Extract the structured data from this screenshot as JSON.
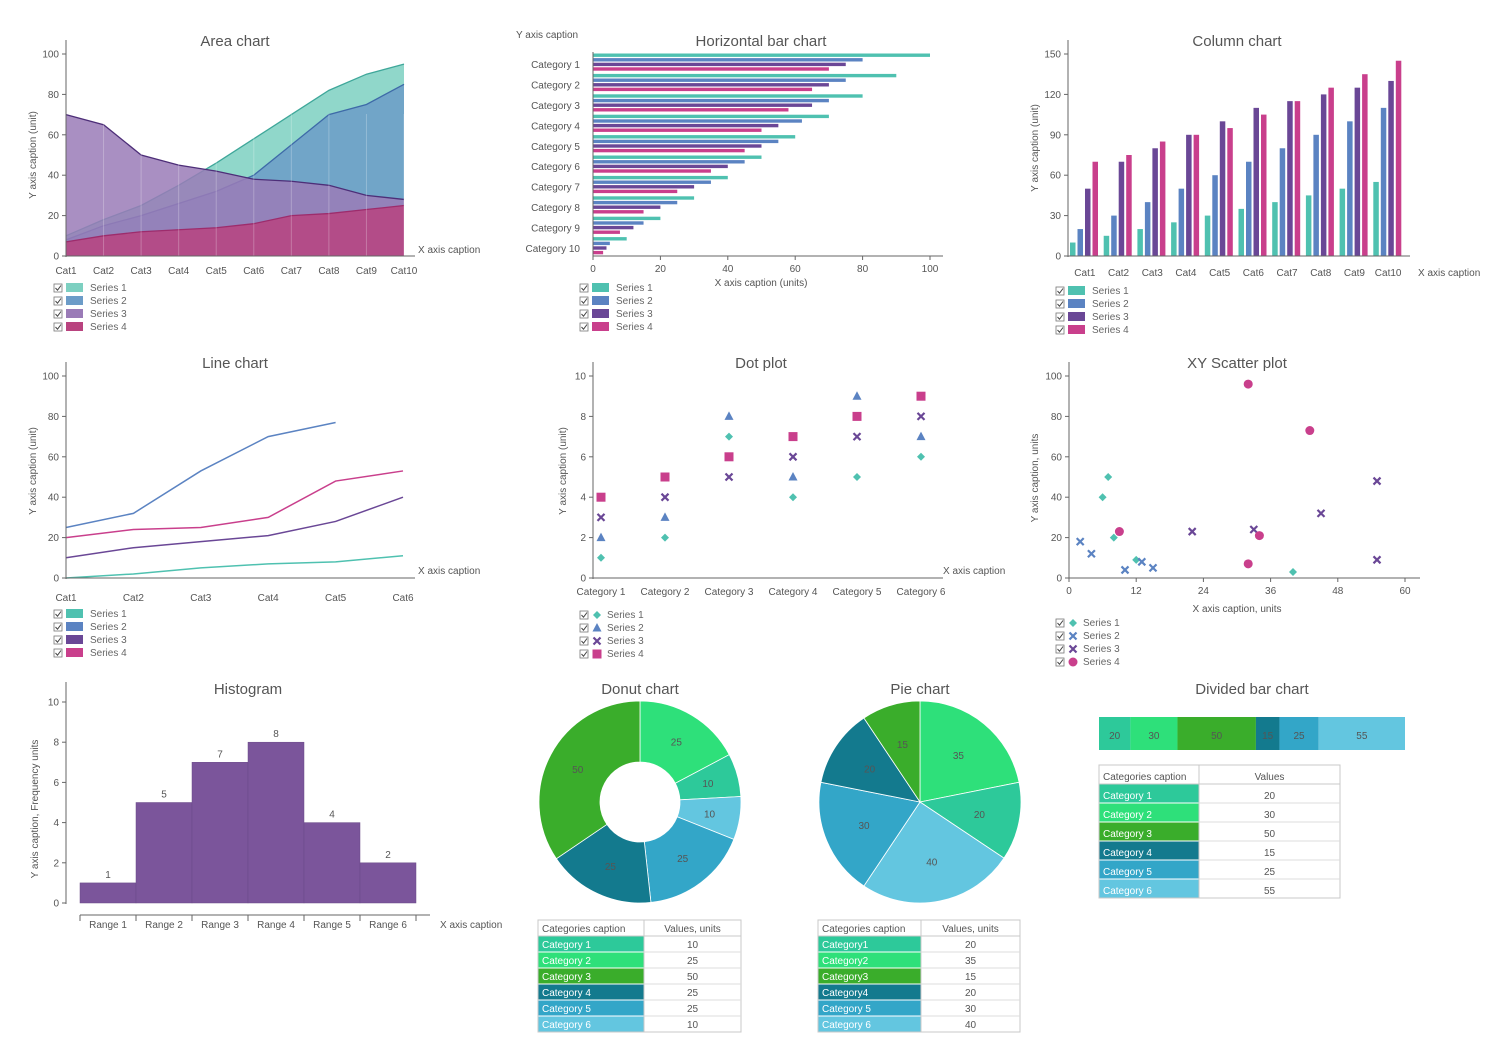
{
  "colors": {
    "s1": "#4fc1b0",
    "s2": "#5b83c2",
    "s3": "#6a4796",
    "s4": "#c93f8c",
    "area1": "#7dd0c1",
    "area2": "#6c9cc8",
    "area3": "#9a7bb7",
    "area4": "#b9437f",
    "hist": "#7b559b",
    "p1": "#2dc99a",
    "p2": "#2ee07a",
    "p3": "#3aad2b",
    "p4": "#137a8e",
    "p5": "#33a6c8",
    "p6": "#63c6e0"
  },
  "chart_data": [
    {
      "id": "area",
      "type": "area",
      "title": "Area chart",
      "xlabel": "X axis caption",
      "ylabel": "Y axis caption (unit)",
      "categories": [
        "Cat1",
        "Cat2",
        "Cat3",
        "Cat4",
        "Cat5",
        "Cat6",
        "Cat7",
        "Cat8",
        "Cat9",
        "Cat10"
      ],
      "ylim": [
        0,
        100
      ],
      "yticks": [
        "0",
        "20",
        "40",
        "60",
        "80",
        "100"
      ],
      "series": [
        {
          "name": "Series 1",
          "values": [
            10,
            18,
            25,
            35,
            46,
            58,
            70,
            82,
            90,
            95
          ]
        },
        {
          "name": "Series 2",
          "values": [
            8,
            15,
            20,
            26,
            32,
            40,
            55,
            70,
            75,
            85
          ]
        },
        {
          "name": "Series 3",
          "values": [
            70,
            65,
            50,
            45,
            42,
            38,
            37,
            35,
            30,
            28
          ]
        },
        {
          "name": "Series 4",
          "values": [
            7,
            10,
            12,
            13,
            14,
            16,
            20,
            21,
            23,
            25
          ]
        }
      ]
    },
    {
      "id": "hbar",
      "type": "bar",
      "orientation": "horizontal",
      "title": "Horizontal bar chart",
      "xlabel": "X axis caption (units)",
      "ylabel": "Y axis caption",
      "categories": [
        "Category 1",
        "Category 2",
        "Category 3",
        "Category 4",
        "Category 5",
        "Category 6",
        "Category 7",
        "Category 8",
        "Category 9",
        "Category 10"
      ],
      "xlim": [
        0,
        100
      ],
      "xticks": [
        "0",
        "20",
        "40",
        "60",
        "80",
        "100"
      ],
      "series": [
        {
          "name": "Series 1",
          "values": [
            100,
            90,
            80,
            70,
            60,
            50,
            40,
            30,
            20,
            10
          ]
        },
        {
          "name": "Series 2",
          "values": [
            80,
            75,
            70,
            62,
            55,
            45,
            35,
            25,
            15,
            5
          ]
        },
        {
          "name": "Series 3",
          "values": [
            75,
            70,
            65,
            55,
            50,
            40,
            30,
            20,
            12,
            4
          ]
        },
        {
          "name": "Series 4",
          "values": [
            70,
            65,
            58,
            50,
            45,
            35,
            25,
            15,
            8,
            3
          ]
        }
      ]
    },
    {
      "id": "column",
      "type": "bar",
      "title": "Column chart",
      "xlabel": "X axis caption",
      "ylabel": "Y axis caption (unit)",
      "categories": [
        "Cat1",
        "Cat2",
        "Cat3",
        "Cat4",
        "Cat5",
        "Cat6",
        "Cat7",
        "Cat8",
        "Cat9",
        "Cat10"
      ],
      "ylim": [
        0,
        150
      ],
      "yticks": [
        "0",
        "30",
        "60",
        "90",
        "120",
        "150"
      ],
      "series": [
        {
          "name": "Series 1",
          "values": [
            10,
            15,
            20,
            25,
            30,
            35,
            40,
            45,
            50,
            55
          ]
        },
        {
          "name": "Series 2",
          "values": [
            20,
            30,
            40,
            50,
            60,
            70,
            80,
            90,
            100,
            110
          ]
        },
        {
          "name": "Series 3",
          "values": [
            50,
            70,
            80,
            90,
            100,
            110,
            115,
            120,
            125,
            130
          ]
        },
        {
          "name": "Series 4",
          "values": [
            70,
            75,
            85,
            90,
            95,
            105,
            115,
            125,
            135,
            145
          ]
        }
      ]
    },
    {
      "id": "line",
      "type": "line",
      "title": "Line chart",
      "xlabel": "X axis caption",
      "ylabel": "Y axis caption (unit)",
      "categories": [
        "Cat1",
        "Cat2",
        "Cat3",
        "Cat4",
        "Cat5",
        "Cat6"
      ],
      "ylim": [
        0,
        100
      ],
      "yticks": [
        "0",
        "20",
        "40",
        "60",
        "80",
        "100"
      ],
      "series": [
        {
          "name": "Series 1",
          "values": [
            0,
            2,
            5,
            7,
            8,
            11
          ]
        },
        {
          "name": "Series 2",
          "values": [
            25,
            32,
            53,
            70,
            77,
            null
          ]
        },
        {
          "name": "Series 3",
          "values": [
            10,
            15,
            18,
            21,
            28,
            40
          ]
        },
        {
          "name": "Series 4",
          "values": [
            20,
            24,
            25,
            30,
            48,
            53
          ]
        }
      ]
    },
    {
      "id": "dot",
      "type": "scatter",
      "title": "Dot plot",
      "xlabel": "X axis caption",
      "ylabel": "Y axis caption (unit)",
      "categories": [
        "Category 1",
        "Category 2",
        "Category 3",
        "Category 4",
        "Category 5",
        "Category 6"
      ],
      "ylim": [
        0,
        10
      ],
      "yticks": [
        "0",
        "2",
        "4",
        "6",
        "8",
        "10"
      ],
      "series": [
        {
          "name": "Series 1",
          "marker": "diamond",
          "values": [
            1,
            2,
            7,
            4,
            5,
            6
          ]
        },
        {
          "name": "Series 2",
          "marker": "triangle",
          "values": [
            2,
            3,
            8,
            5,
            9,
            7
          ]
        },
        {
          "name": "Series 3",
          "marker": "cross",
          "values": [
            3,
            4,
            5,
            6,
            7,
            8
          ]
        },
        {
          "name": "Series 4",
          "marker": "square",
          "values": [
            4,
            5,
            6,
            7,
            8,
            9
          ]
        }
      ]
    },
    {
      "id": "xy",
      "type": "scatter",
      "title": "XY Scatter plot",
      "xlabel": "X axis caption, units",
      "ylabel": "Y axis caption, units",
      "xlim": [
        0,
        60
      ],
      "ylim": [
        0,
        100
      ],
      "xticks": [
        "0",
        "12",
        "24",
        "36",
        "48",
        "60"
      ],
      "yticks": [
        "0",
        "20",
        "40",
        "60",
        "80",
        "100"
      ],
      "series": [
        {
          "name": "Series 1",
          "marker": "diamond",
          "points": [
            [
              6,
              40
            ],
            [
              7,
              50
            ],
            [
              8,
              20
            ],
            [
              12,
              9
            ],
            [
              40,
              3
            ]
          ]
        },
        {
          "name": "Series 2",
          "marker": "cross",
          "points": [
            [
              2,
              18
            ],
            [
              4,
              12
            ],
            [
              10,
              4
            ],
            [
              13,
              8
            ],
            [
              15,
              5
            ]
          ]
        },
        {
          "name": "Series 3",
          "marker": "cross",
          "points": [
            [
              33,
              24
            ],
            [
              45,
              32
            ],
            [
              55,
              48
            ],
            [
              55,
              9
            ],
            [
              22,
              23
            ]
          ]
        },
        {
          "name": "Series 4",
          "marker": "circle",
          "points": [
            [
              9,
              23
            ],
            [
              32,
              96
            ],
            [
              34,
              21
            ],
            [
              43,
              73
            ],
            [
              32,
              7
            ]
          ]
        }
      ]
    },
    {
      "id": "hist",
      "type": "bar",
      "title": "Histogram",
      "xlabel": "X axis caption",
      "ylabel": "Y axis caption, Frequency units",
      "categories": [
        "Range 1",
        "Range 2",
        "Range 3",
        "Range 4",
        "Range 5",
        "Range 6"
      ],
      "values": [
        1,
        5,
        7,
        8,
        4,
        2
      ],
      "labels": [
        "1",
        "5",
        "7",
        "8",
        "4",
        "2"
      ],
      "ylim": [
        0,
        10
      ],
      "yticks": [
        "0",
        "2",
        "4",
        "6",
        "8",
        "10"
      ]
    },
    {
      "id": "donut",
      "type": "pie",
      "title": "Donut chart",
      "values": [
        10,
        25,
        50,
        25,
        25,
        10
      ],
      "labels": [
        "10",
        "25",
        "50",
        "25",
        "25",
        "10"
      ],
      "table_header": [
        "Categories caption",
        "Values, units"
      ],
      "categories": [
        "Category 1",
        "Category 2",
        "Category 3",
        "Category 4",
        "Category 5",
        "Category 6"
      ]
    },
    {
      "id": "pie",
      "type": "pie",
      "title": "Pie chart",
      "values": [
        20,
        35,
        15,
        20,
        30,
        40
      ],
      "labels": [
        "20",
        "35",
        "15",
        "20",
        "30",
        "40"
      ],
      "table_header": [
        "Categories caption",
        "Values, units"
      ],
      "categories": [
        "Category1",
        "Category2",
        "Category3",
        "Category4",
        "Category 5",
        "Category 6"
      ]
    },
    {
      "id": "divided",
      "type": "bar",
      "title": "Divided bar chart",
      "values": [
        20,
        30,
        50,
        15,
        25,
        55
      ],
      "labels": [
        "20",
        "30",
        "50",
        "15",
        "25",
        "55"
      ],
      "table_header": [
        "Categories caption",
        "Values"
      ],
      "categories": [
        "Category 1",
        "Category 2",
        "Category 3",
        "Category 4",
        "Category 5",
        "Category 6"
      ]
    }
  ]
}
